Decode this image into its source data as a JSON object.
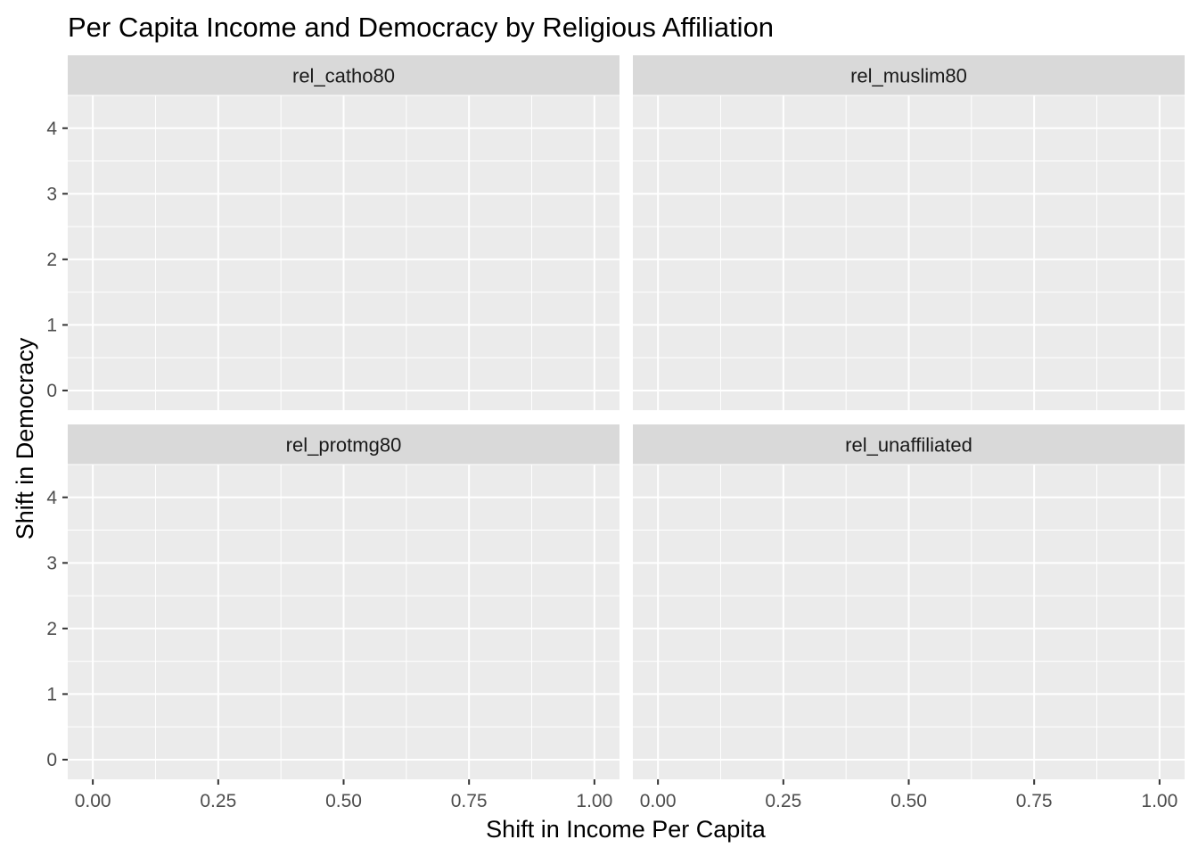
{
  "chart_data": {
    "type": "scatter",
    "title": "Per Capita Income and Democracy by Religious Affiliation",
    "xlabel": "Shift in Income Per Capita",
    "ylabel": "Shift in Democracy",
    "facets": [
      {
        "label": "rel_catho80",
        "points": []
      },
      {
        "label": "rel_muslim80",
        "points": []
      },
      {
        "label": "rel_protmg80",
        "points": []
      },
      {
        "label": "rel_unaffiliated",
        "points": []
      }
    ],
    "xlim": [
      -0.05,
      1.05
    ],
    "ylim": [
      -0.3,
      4.5
    ],
    "x_ticks": [
      0,
      0.25,
      0.5,
      0.75,
      1
    ],
    "x_tick_labels": [
      "0.00",
      "0.25",
      "0.50",
      "0.75",
      "1.00"
    ],
    "y_ticks": [
      0,
      1,
      2,
      3,
      4
    ],
    "y_tick_labels": [
      "0",
      "1",
      "2",
      "3",
      "4"
    ],
    "grid": true,
    "panel_background": "#ebebeb",
    "strip_background": "#d9d9d9",
    "grid_color": "#ffffff"
  }
}
